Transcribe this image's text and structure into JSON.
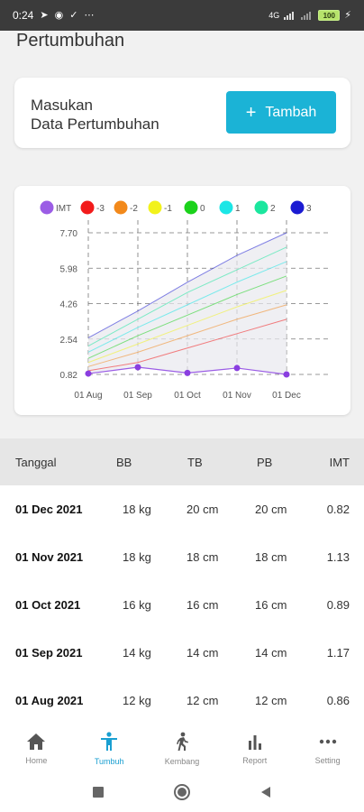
{
  "status_bar": {
    "time": "0:24",
    "dots": "⋯",
    "network": "4G",
    "battery": "100"
  },
  "page": {
    "title": "Pertumbuhan"
  },
  "add_card": {
    "line1": "Masukan",
    "line2": "Data Pertumbuhan",
    "button_label": "Tambah"
  },
  "chart_data": {
    "type": "line",
    "legend": [
      {
        "name": "IMT",
        "color": "#9b5de5"
      },
      {
        "name": "-3",
        "color": "#f21b1b"
      },
      {
        "name": "-2",
        "color": "#f2891b"
      },
      {
        "name": "-1",
        "color": "#f2f21b"
      },
      {
        "name": "0",
        "color": "#1bd21b"
      },
      {
        "name": "1",
        "color": "#1be6e6"
      },
      {
        "name": "2",
        "color": "#1be69e"
      },
      {
        "name": "3",
        "color": "#1b1bd2"
      }
    ],
    "categories": [
      "01 Aug",
      "01 Sep",
      "01 Oct",
      "01 Nov",
      "01 Dec"
    ],
    "y_ticks": [
      "7.70",
      "5.98",
      "4.26",
      "2.54",
      "0.82"
    ],
    "ylim": [
      0.82,
      7.7
    ],
    "series": [
      {
        "name": "IMT",
        "values": [
          0.86,
          1.17,
          0.89,
          1.13,
          0.82
        ]
      },
      {
        "name": "-3",
        "values": [
          1.0,
          1.4,
          2.1,
          2.8,
          3.5
        ]
      },
      {
        "name": "-2",
        "values": [
          1.2,
          1.9,
          2.7,
          3.5,
          4.2
        ]
      },
      {
        "name": "-1",
        "values": [
          1.4,
          2.3,
          3.2,
          4.1,
          4.9
        ]
      },
      {
        "name": "0",
        "values": [
          1.6,
          2.7,
          3.7,
          4.7,
          5.6
        ]
      },
      {
        "name": "1",
        "values": [
          1.9,
          3.1,
          4.2,
          5.3,
          6.3
        ]
      },
      {
        "name": "2",
        "values": [
          2.2,
          3.5,
          4.8,
          5.9,
          7.0
        ]
      },
      {
        "name": "3",
        "values": [
          2.6,
          3.9,
          5.3,
          6.6,
          7.7
        ]
      }
    ],
    "grid": true,
    "legend_position": "top"
  },
  "table": {
    "headers": [
      "Tanggal",
      "BB",
      "TB",
      "PB",
      "IMT"
    ],
    "rows": [
      [
        "01 Dec 2021",
        "18 kg",
        "20 cm",
        "20 cm",
        "0.82"
      ],
      [
        "01 Nov 2021",
        "18 kg",
        "18 cm",
        "18 cm",
        "1.13"
      ],
      [
        "01 Oct 2021",
        "16 kg",
        "16 cm",
        "16 cm",
        "0.89"
      ],
      [
        "01 Sep 2021",
        "14 kg",
        "14 cm",
        "14 cm",
        "1.17"
      ],
      [
        "01 Aug 2021",
        "12 kg",
        "12 cm",
        "12 cm",
        "0.86"
      ]
    ]
  },
  "bottom_nav": {
    "items": [
      {
        "label": "Home",
        "icon": "home-icon"
      },
      {
        "label": "Tumbuh",
        "icon": "child-icon",
        "active": true
      },
      {
        "label": "Kembang",
        "icon": "walk-icon"
      },
      {
        "label": "Report",
        "icon": "bar-chart-icon"
      },
      {
        "label": "Setting",
        "icon": "more-icon"
      }
    ]
  },
  "colors": {
    "accent": "#1bb3d6",
    "active_nav": "#1a9fd1"
  }
}
